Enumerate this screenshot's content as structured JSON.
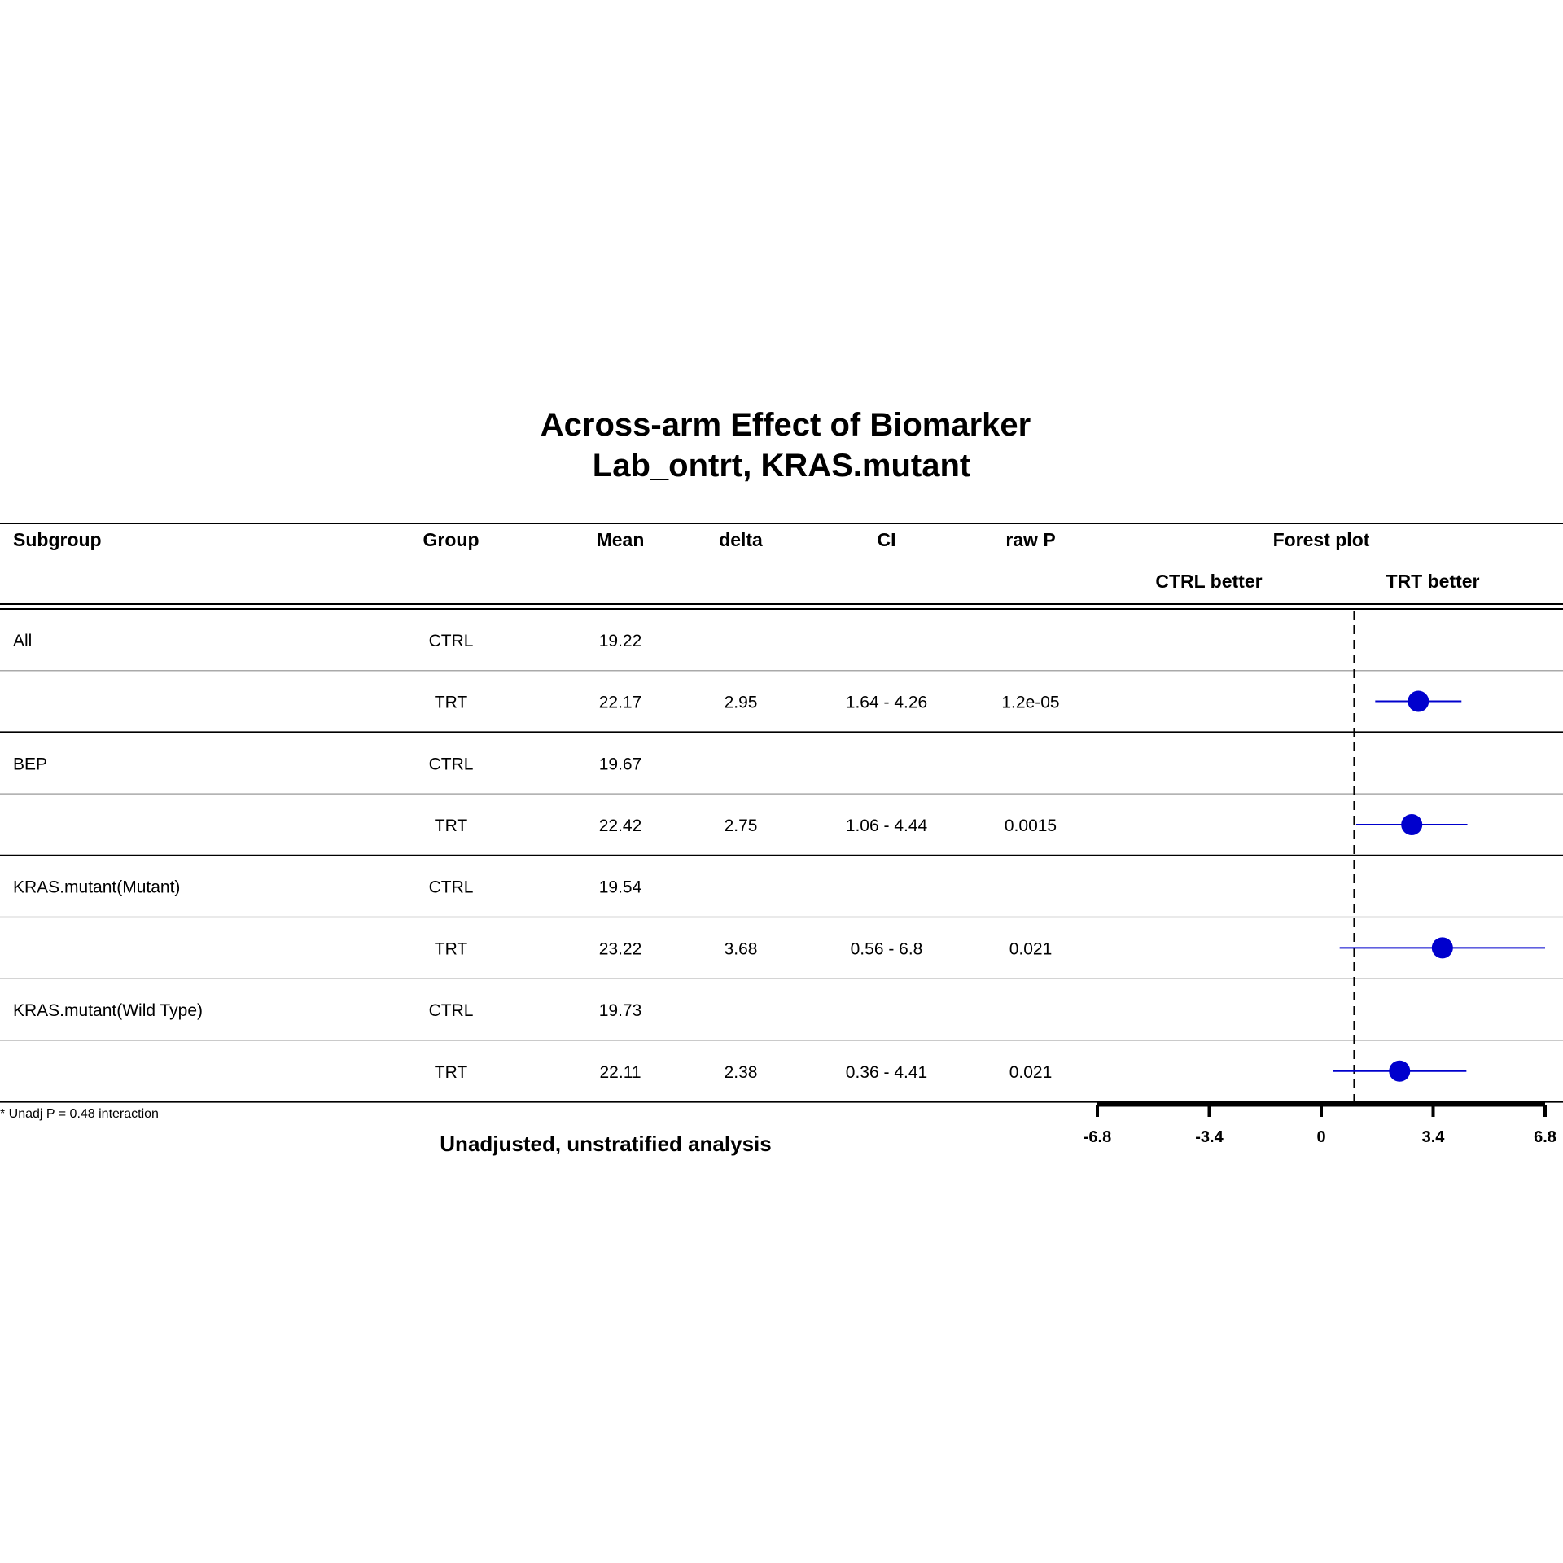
{
  "title": {
    "line1": "Across-arm Effect of Biomarker",
    "line2": "Lab_ontrt, KRAS.mutant"
  },
  "columns": {
    "subgroup": "Subgroup",
    "group": "Group",
    "mean": "Mean",
    "delta": "delta",
    "ci": "CI",
    "rawp": "raw P",
    "forest": "Forest plot",
    "ctrl_better": "CTRL better",
    "trt_better": "TRT better"
  },
  "rows": [
    {
      "subgroup": "All",
      "group": "CTRL",
      "mean": "19.22",
      "delta": "",
      "ci": "",
      "rawp": ""
    },
    {
      "subgroup": "",
      "group": "TRT",
      "mean": "22.17",
      "delta": "2.95",
      "ci": "1.64 - 4.26",
      "rawp": "1.2e-05"
    },
    {
      "subgroup": "BEP",
      "group": "CTRL",
      "mean": "19.67",
      "delta": "",
      "ci": "",
      "rawp": ""
    },
    {
      "subgroup": "",
      "group": "TRT",
      "mean": "22.42",
      "delta": "2.75",
      "ci": "1.06 - 4.44",
      "rawp": "0.0015"
    },
    {
      "subgroup": "KRAS.mutant(Mutant)",
      "group": "CTRL",
      "mean": "19.54",
      "delta": "",
      "ci": "",
      "rawp": ""
    },
    {
      "subgroup": "",
      "group": "TRT",
      "mean": "23.22",
      "delta": "3.68",
      "ci": "0.56 - 6.8",
      "rawp": "0.021"
    },
    {
      "subgroup": "KRAS.mutant(Wild Type)",
      "group": "CTRL",
      "mean": "19.73",
      "delta": "",
      "ci": "",
      "rawp": ""
    },
    {
      "subgroup": "",
      "group": "TRT",
      "mean": "22.11",
      "delta": "2.38",
      "ci": "0.36 - 4.41",
      "rawp": "0.021"
    }
  ],
  "footnote": "* Unadj P = 0.48 interaction",
  "subtitle": "Unadjusted, unstratified analysis",
  "chart_data": {
    "type": "scatter",
    "title": "Forest plot",
    "xlim": [
      -6.8,
      6.8
    ],
    "xticks": [
      -6.8,
      -3.4,
      0,
      3.4,
      6.8
    ],
    "xtick_labels": [
      "-6.8",
      "-3.4",
      "0",
      "3.4",
      "6.8"
    ],
    "reference_line": 1.0,
    "point_color": "#0000CD",
    "series": [
      {
        "row": 1,
        "estimate": 2.95,
        "lower": 1.64,
        "upper": 4.26
      },
      {
        "row": 3,
        "estimate": 2.75,
        "lower": 1.06,
        "upper": 4.44
      },
      {
        "row": 5,
        "estimate": 3.68,
        "lower": 0.56,
        "upper": 6.8
      },
      {
        "row": 7,
        "estimate": 2.38,
        "lower": 0.36,
        "upper": 4.41
      }
    ]
  }
}
